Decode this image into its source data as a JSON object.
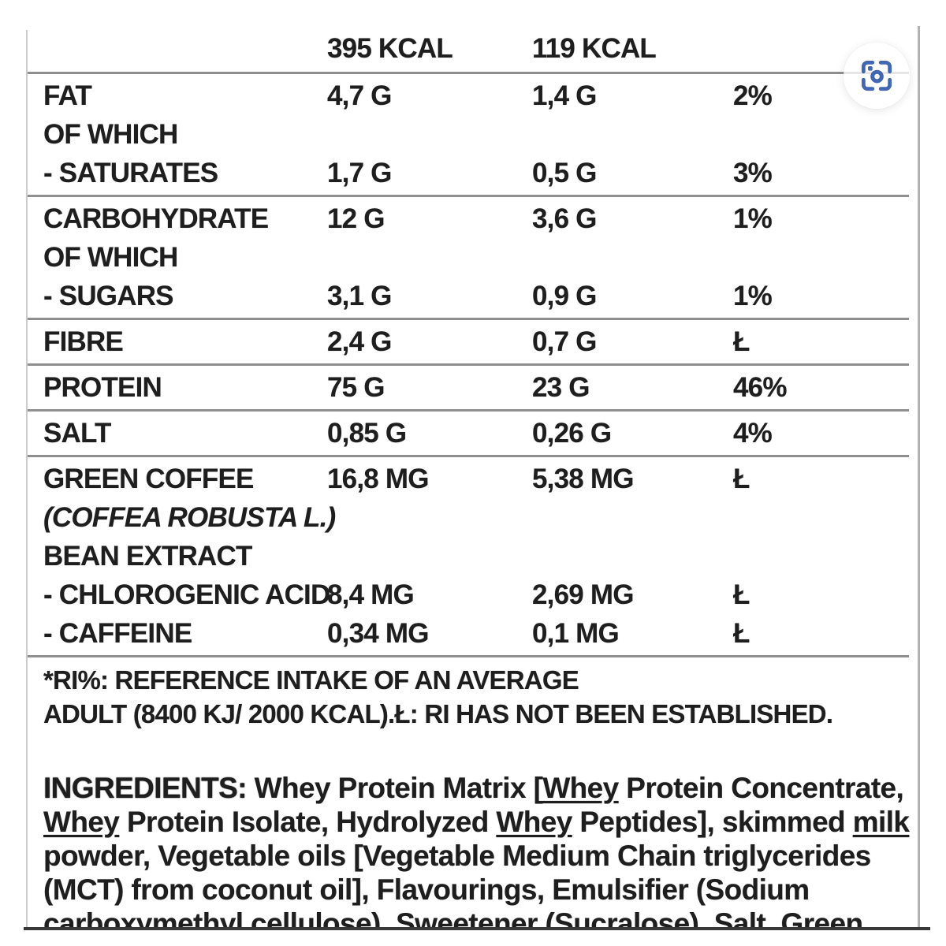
{
  "photo": {
    "header": {
      "per100": "395 KCAL",
      "perServing": "119 KCAL"
    },
    "rows": [
      {
        "label": "FAT",
        "v100": "4,7 G",
        "vsrv": "1,4 G",
        "ri": "2%"
      },
      {
        "label": "OF WHICH"
      },
      {
        "label": "- SATURATES",
        "v100": "1,7 G",
        "vsrv": "0,5 G",
        "ri": "3%",
        "ruleAfter": true
      },
      {
        "label": "CARBOHYDRATE",
        "v100": "12 G",
        "vsrv": "3,6 G",
        "ri": "1%"
      },
      {
        "label": "OF WHICH"
      },
      {
        "label": "- SUGARS",
        "v100": "3,1 G",
        "vsrv": "0,9 G",
        "ri": "1%",
        "ruleAfter": true
      },
      {
        "label": "FIBRE",
        "v100": "2,4 G",
        "vsrv": "0,7 G",
        "ri": "Ł",
        "ruleAfter": true
      },
      {
        "label": "PROTEIN",
        "v100": "75 G",
        "vsrv": "23 G",
        "ri": "46%",
        "ruleAfter": true
      },
      {
        "label": "SALT",
        "v100": "0,85 G",
        "vsrv": "0,26 G",
        "ri": "4%",
        "ruleAfter": true
      },
      {
        "label": "GREEN COFFEE",
        "v100": "16,8 MG",
        "vsrv": "5,38 MG",
        "ri": "Ł"
      },
      {
        "label": "(COFFEA ROBUSTA L.)",
        "italic": true
      },
      {
        "label": "BEAN EXTRACT"
      },
      {
        "label": "- CHLOROGENIC ACID",
        "v100": "8,4 MG",
        "vsrv": "2,69 MG",
        "ri": "Ł"
      },
      {
        "label": "- CAFFEINE",
        "v100": "0,34 MG",
        "vsrv": "0,1 MG",
        "ri": "Ł",
        "ruleAfter": true
      }
    ],
    "footnote_line1": "*RI%: REFERENCE INTAKE OF AN AVERAGE",
    "footnote_line2": "ADULT (8400 KJ/ 2000 KCAL).Ł: RI HAS NOT BEEN ESTABLISHED.",
    "ingredients_lines": [
      [
        {
          "t": "INGREDIENTS:",
          "b": true
        },
        {
          "t": " Whey Protein Matrix ["
        },
        {
          "t": "Whey",
          "u": true
        },
        {
          "t": " Protein Concentrate,"
        }
      ],
      [
        {
          "t": "Whey",
          "u": true
        },
        {
          "t": " Protein Isolate, Hydrolyzed "
        },
        {
          "t": "Whey",
          "u": true
        },
        {
          "t": " Peptides], skimmed "
        },
        {
          "t": "milk",
          "u": true
        }
      ],
      [
        {
          "t": "powder, Vegetable oils [Vegetable Medium Chain triglycerides"
        }
      ],
      [
        {
          "t": "(MCT) from coconut oil], Flavourings, Emulsifier (Sodium"
        }
      ],
      [
        {
          "t": "carboxymethyl cellulose), Sweetener (Sucralose), Salt, Green"
        }
      ]
    ]
  },
  "lens_button": {
    "icon": "google-lens-icon"
  },
  "colors": {
    "text": "#1e1e1e",
    "rule_gray": "#8f8f8f",
    "crop_line": "#383838",
    "border_light": "#cccccc",
    "lens_blue": "#4266b2"
  }
}
